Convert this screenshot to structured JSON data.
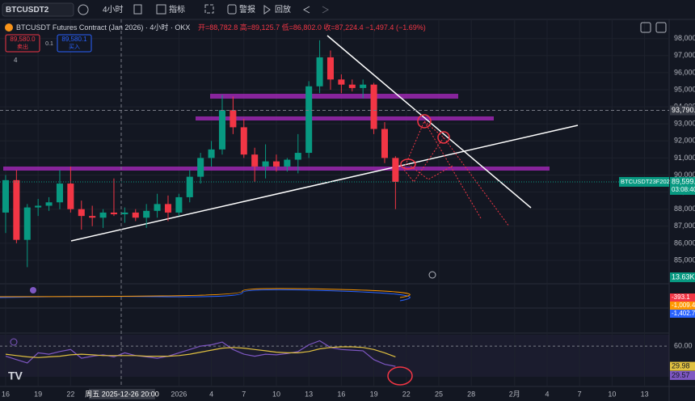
{
  "toolbar": {
    "symbol": "BTCUSDT2",
    "interval": "4小时",
    "indicators": "指标",
    "alert": "警报",
    "replay": "回放"
  },
  "legend": {
    "title": "BTCUSDT Futures Contract (Jan 2026) · 4小时 · OKX",
    "ohlc": "开=88,782.8 高=89,125.7 低=86,802.0 收=87,224.4 −1,497.4 (−1.69%)",
    "sell_price": "89,580.0",
    "sell": "卖出",
    "spread": "0.1",
    "buy_price": "89,580.1",
    "buy": "买入",
    "count": "4"
  },
  "chart_data": {
    "type": "candlestick",
    "x": [
      0,
      1,
      2,
      3,
      4,
      5,
      6,
      7,
      8,
      9,
      10,
      11,
      12,
      13,
      14,
      15,
      16,
      17,
      18,
      19,
      20,
      21,
      22,
      23,
      24,
      25,
      26,
      27,
      28,
      29,
      30,
      31,
      32,
      33,
      34,
      35,
      36
    ],
    "open": [
      87800,
      89700,
      86200,
      88100,
      88200,
      88400,
      89500,
      88000,
      87600,
      87500,
      87800,
      87700,
      87800,
      87500,
      87900,
      88300,
      87800,
      88700,
      89900,
      91000,
      91500,
      93800,
      92800,
      91200,
      90500,
      90800,
      90500,
      90900,
      91300,
      95200,
      96900,
      95600,
      95300,
      95100,
      95300,
      92700,
      91000
    ],
    "high": [
      90000,
      90300,
      88300,
      88600,
      88700,
      90300,
      90500,
      88500,
      88200,
      88000,
      89800,
      88100,
      88000,
      88300,
      88900,
      88800,
      88900,
      90300,
      91300,
      92000,
      94700,
      94600,
      93300,
      91600,
      91800,
      91200,
      91000,
      92400,
      95500,
      97900,
      97300,
      95900,
      95600,
      95600,
      95400,
      93100,
      91100
    ],
    "low": [
      86600,
      86000,
      84600,
      87600,
      87900,
      88000,
      87800,
      86800,
      87000,
      86900,
      87600,
      87200,
      87300,
      86900,
      87500,
      87300,
      87600,
      88400,
      89500,
      90500,
      91200,
      92400,
      91000,
      89600,
      89800,
      90200,
      90200,
      90100,
      91000,
      94800,
      95000,
      94800,
      94900,
      94500,
      92400,
      90700,
      88000
    ],
    "close": [
      89700,
      86200,
      88100,
      88200,
      88400,
      89500,
      88000,
      87600,
      87500,
      87800,
      87700,
      87800,
      87500,
      87900,
      88300,
      87800,
      88700,
      89900,
      91000,
      91500,
      93800,
      92800,
      91200,
      90500,
      90800,
      90500,
      90900,
      91300,
      95200,
      96900,
      95600,
      95300,
      95100,
      95300,
      92700,
      91000,
      89600
    ],
    "up_color": "#089981",
    "down_color": "#f23645",
    "xlim": [
      -0.52,
      61.27
    ],
    "xticks": [
      {
        "value": 0,
        "label": "16"
      },
      {
        "value": 3,
        "label": "19"
      },
      {
        "value": 6,
        "label": "22"
      },
      {
        "value": 16,
        "label": "2026"
      },
      {
        "value": 19,
        "label": "4"
      },
      {
        "value": 22,
        "label": "7"
      },
      {
        "value": 25,
        "label": "10"
      },
      {
        "value": 28,
        "label": "13"
      },
      {
        "value": 31,
        "label": "16"
      },
      {
        "value": 34,
        "label": "19"
      },
      {
        "value": 37,
        "label": "22"
      },
      {
        "value": 40,
        "label": "25"
      },
      {
        "value": 43,
        "label": "28"
      },
      {
        "value": 47,
        "label": "2月"
      },
      {
        "value": 50,
        "label": "4"
      },
      {
        "value": 53,
        "label": "7"
      },
      {
        "value": 56,
        "label": "10"
      },
      {
        "value": 59,
        "label": "13"
      }
    ],
    "crosshair_label": "周五 2025-12-26  20:00",
    "ylim": [
      83673,
      99123
    ],
    "yticks": [
      {
        "value": 85000,
        "label": "85,000.0"
      },
      {
        "value": 86000,
        "label": "86,000.0"
      },
      {
        "value": 87000,
        "label": "87,000.0"
      },
      {
        "value": 88000,
        "label": "88,000.0"
      },
      {
        "value": 89000,
        "label": "89,000.0"
      },
      {
        "value": 90000,
        "label": "90,000.0"
      },
      {
        "value": 91000,
        "label": "91,000.0"
      },
      {
        "value": 92000,
        "label": "92,000.0"
      },
      {
        "value": 93000,
        "label": "93,000.0"
      },
      {
        "value": 94000,
        "label": "94,000.0"
      },
      {
        "value": 95000,
        "label": "95,000.0"
      },
      {
        "value": 96000,
        "label": "96,000.0"
      },
      {
        "value": 97000,
        "label": "97,000.0"
      },
      {
        "value": 98000,
        "label": "98,000.0"
      }
    ],
    "grid": true,
    "crosshair_price": {
      "value": 93790.8,
      "label": "93,790.8"
    },
    "last_price": {
      "value": 89599.6,
      "label": "89,599.6",
      "symbol": "BTCUSDT23F2026",
      "countdown": "03:08:40"
    },
    "volume_label": "13.63K",
    "macd_labels": [
      "-393.1",
      "-1,009.4",
      "-1,402.7"
    ],
    "rsi": {
      "values": [
        45,
        40,
        35,
        50,
        48,
        52,
        55,
        42,
        45,
        47,
        44,
        50,
        46,
        44,
        42,
        45,
        50,
        55,
        60,
        62,
        66,
        55,
        48,
        45,
        48,
        47,
        49,
        52,
        62,
        68,
        58,
        55,
        54,
        53,
        40,
        33,
        29.98
      ],
      "ma": [
        48,
        46,
        44,
        43,
        44,
        45,
        47,
        48,
        47,
        46,
        46,
        46,
        46,
        45,
        45,
        45,
        46,
        48,
        51,
        54,
        57,
        58,
        57,
        55,
        53,
        51,
        50,
        50,
        52,
        56,
        58,
        59,
        59,
        58,
        55,
        50,
        44
      ],
      "ylim": [
        0,
        77
      ],
      "yticks": [
        {
          "value": 60,
          "label": "60.00"
        }
      ],
      "tags": [
        {
          "value": 29.98,
          "label": "29.98"
        },
        {
          "value": 29.57,
          "label": "29.57"
        }
      ],
      "line_color": "#7e57c2",
      "ma_color": "#e0c040"
    }
  }
}
